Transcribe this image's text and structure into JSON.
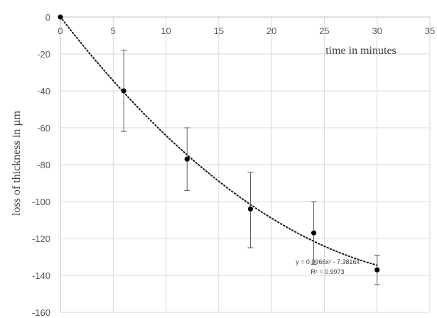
{
  "chart_data": {
    "type": "scatter",
    "xlabel": "time in minutes",
    "ylabel": "loss of thickness in µm",
    "xlim": [
      0,
      35
    ],
    "ylim": [
      -160,
      0
    ],
    "x_ticks": [
      0,
      5,
      10,
      15,
      20,
      25,
      30,
      35
    ],
    "y_ticks": [
      0,
      -20,
      -40,
      -60,
      -80,
      -100,
      -120,
      -140,
      -160
    ],
    "x_tick_labels": [
      "0",
      "5",
      "10",
      "15",
      "20",
      "25",
      "30",
      "35"
    ],
    "y_tick_labels": [
      "0",
      "-20",
      "-40",
      "-60",
      "-80",
      "-100",
      "-120",
      "-140",
      "-160"
    ],
    "grid": true,
    "series": [
      {
        "x": [
          0,
          6,
          12,
          18,
          24,
          30
        ],
        "y": [
          0,
          -40,
          -77,
          -104,
          -117,
          -137
        ],
        "error_low": [
          0,
          22,
          17,
          21,
          17,
          8
        ],
        "error_high": [
          0,
          22,
          17,
          20,
          17,
          8
        ],
        "color": "#000000"
      }
    ],
    "trendline": {
      "kind": "polynomial",
      "coefficients": [
        0.0966,
        -7.3816,
        0
      ],
      "style": "dotted",
      "equation": "y = 0.0966x² - 7.3816x",
      "r_squared": "R² = 0.9973"
    }
  }
}
